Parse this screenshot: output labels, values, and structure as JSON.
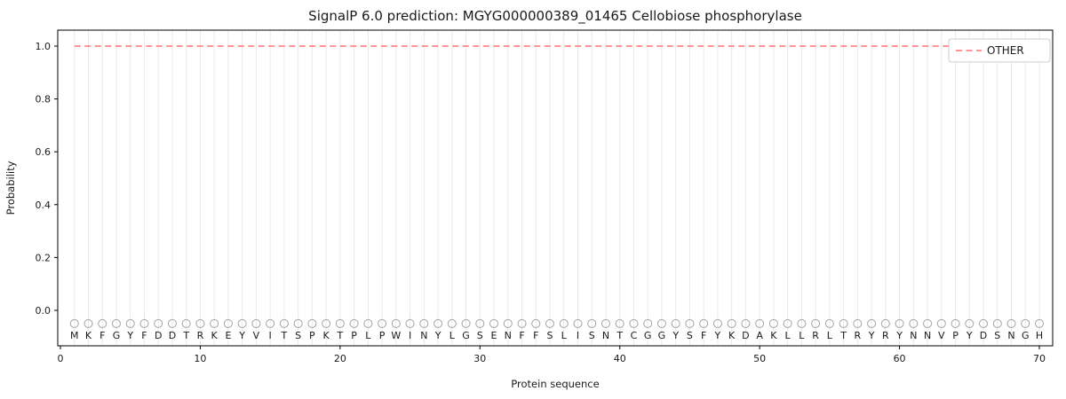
{
  "chart_data": {
    "type": "line",
    "title": "SignalP 6.0 prediction: MGYG000000389_01465 Cellobiose phosphorylase",
    "xlabel": "Protein sequence",
    "ylabel": "Probability",
    "xticks": [
      0,
      10,
      20,
      30,
      40,
      50,
      60,
      70
    ],
    "yticks": [
      0.0,
      0.2,
      0.4,
      0.6,
      0.8,
      1.0
    ],
    "xlim": [
      0,
      71
    ],
    "ylim": [
      -0.13,
      1.06
    ],
    "grid": "vertical-line-per-residue",
    "legend": {
      "position": "upper right",
      "entries": [
        "OTHER"
      ]
    },
    "sequence": "MKFGYFDDTRKEYVITSPKTPLPWINYLGSENFFSLISNTCGGYSFYKDAKLLRLTRYRYNNVPYDSNGH",
    "sequence_length": 70,
    "marker_y": -0.05,
    "colors": {
      "other_line": "#ff7272",
      "marker_stroke": "#ababab",
      "grid": "#e9e9e9",
      "frame": "#000000"
    },
    "series": [
      {
        "name": "OTHER",
        "style": "dashed",
        "color": "#ff7272",
        "x_start": 1,
        "values": [
          1.0,
          1.0,
          1.0,
          1.0,
          1.0,
          1.0,
          1.0,
          1.0,
          1.0,
          1.0,
          1.0,
          1.0,
          1.0,
          1.0,
          1.0,
          1.0,
          1.0,
          1.0,
          1.0,
          1.0,
          1.0,
          1.0,
          1.0,
          1.0,
          1.0,
          1.0,
          1.0,
          1.0,
          1.0,
          1.0,
          1.0,
          1.0,
          1.0,
          1.0,
          1.0,
          1.0,
          1.0,
          1.0,
          1.0,
          1.0,
          1.0,
          1.0,
          1.0,
          1.0,
          1.0,
          1.0,
          1.0,
          1.0,
          1.0,
          1.0,
          1.0,
          1.0,
          1.0,
          1.0,
          1.0,
          1.0,
          1.0,
          1.0,
          1.0,
          1.0,
          1.0,
          1.0,
          1.0,
          1.0,
          1.0,
          1.0,
          1.0,
          1.0,
          1.0,
          1.0
        ]
      }
    ]
  }
}
